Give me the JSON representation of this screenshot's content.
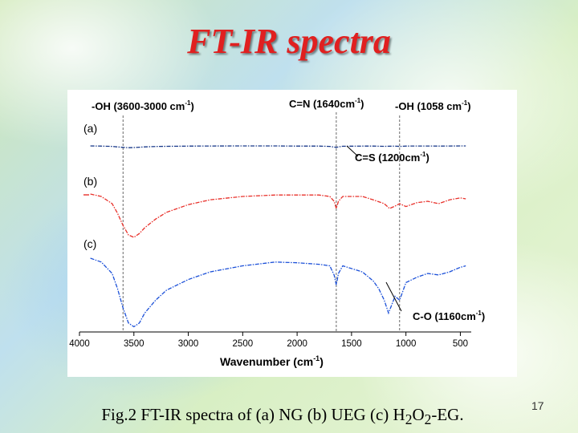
{
  "slide": {
    "title": "FT-IR spectra",
    "caption_prefix": "Fig.2 FT-IR spectra of (a) NG (b) UEG (c) H",
    "caption_sub1": "2",
    "caption_mid": "O",
    "caption_sub2": "2",
    "caption_suffix": "-EG.",
    "page_number": "17"
  },
  "chart_data": {
    "type": "line",
    "title": "",
    "xlabel_main": "Wavenumber (cm",
    "xlabel_sup": "-1",
    "xlabel_end": ")",
    "xlim": [
      4000,
      400
    ],
    "x_reversed": true,
    "xticks": [
      "4000",
      "3500",
      "3000",
      "2500",
      "2000",
      "1500",
      "1000",
      "500"
    ],
    "grid": false,
    "series": [
      {
        "name": "(a)",
        "color": "#1a3a8a",
        "x": [
          3900,
          3800,
          3700,
          3650,
          3600,
          3550,
          3500,
          3450,
          3400,
          3300,
          3200,
          3000,
          2800,
          2500,
          2200,
          2000,
          1800,
          1700,
          1660,
          1640,
          1620,
          1580,
          1400,
          1300,
          1200,
          1100,
          1058,
          1000,
          900,
          800,
          700,
          600,
          500,
          450
        ],
        "y": [
          0,
          0.02,
          0.05,
          0.1,
          0.15,
          0.18,
          0.17,
          0.13,
          0.1,
          0.06,
          0.04,
          0.02,
          0.01,
          0,
          0,
          0.02,
          0.02,
          0.05,
          0.12,
          0.15,
          0.1,
          0.03,
          0.02,
          0.02,
          0.04,
          0.02,
          0.05,
          0.02,
          0.01,
          0.01,
          0.02,
          0.01,
          0,
          0
        ]
      },
      {
        "name": "(b)",
        "color": "#e8302a",
        "x": [
          3900,
          3800,
          3700,
          3650,
          3600,
          3550,
          3500,
          3450,
          3400,
          3300,
          3200,
          3000,
          2800,
          2500,
          2200,
          2000,
          1800,
          1700,
          1660,
          1640,
          1620,
          1580,
          1400,
          1300,
          1200,
          1150,
          1100,
          1058,
          1000,
          900,
          800,
          700,
          600,
          500,
          450
        ],
        "y": [
          0,
          0.05,
          0.2,
          0.4,
          0.65,
          0.85,
          0.9,
          0.82,
          0.7,
          0.52,
          0.38,
          0.22,
          0.12,
          0.05,
          0.02,
          0.02,
          0.02,
          0.05,
          0.15,
          0.3,
          0.15,
          0.05,
          0.05,
          0.12,
          0.2,
          0.3,
          0.25,
          0.2,
          0.26,
          0.18,
          0.15,
          0.2,
          0.12,
          0.08,
          0.1
        ]
      },
      {
        "name": "(c)",
        "color": "#1a4fd8",
        "x": [
          3900,
          3800,
          3700,
          3650,
          3600,
          3550,
          3500,
          3450,
          3400,
          3300,
          3200,
          3000,
          2800,
          2500,
          2200,
          2000,
          1800,
          1700,
          1660,
          1640,
          1620,
          1580,
          1400,
          1300,
          1250,
          1200,
          1160,
          1100,
          1058,
          1000,
          900,
          800,
          700,
          600,
          500,
          450
        ],
        "y": [
          0,
          0.05,
          0.2,
          0.4,
          0.65,
          0.85,
          0.9,
          0.85,
          0.72,
          0.55,
          0.42,
          0.28,
          0.18,
          0.1,
          0.05,
          0.06,
          0.08,
          0.1,
          0.22,
          0.35,
          0.2,
          0.1,
          0.18,
          0.3,
          0.4,
          0.55,
          0.72,
          0.5,
          0.55,
          0.32,
          0.25,
          0.2,
          0.22,
          0.18,
          0.12,
          0.1
        ]
      }
    ],
    "reference_lines": [
      3600,
      1640,
      1058
    ],
    "annotations": [
      {
        "text": "-OH (3600-3000 cm",
        "sup": "-1",
        "end": ")"
      },
      {
        "text": "C=N (1640cm",
        "sup": "-1",
        "end": ")"
      },
      {
        "text": "-OH (1058 cm",
        "sup": "-1",
        "end": ")"
      },
      {
        "text": "C=S (1200cm",
        "sup": "-1",
        "end": ")"
      },
      {
        "text": "C-O (1160cm",
        "sup": "-1",
        "end": ")"
      }
    ]
  }
}
